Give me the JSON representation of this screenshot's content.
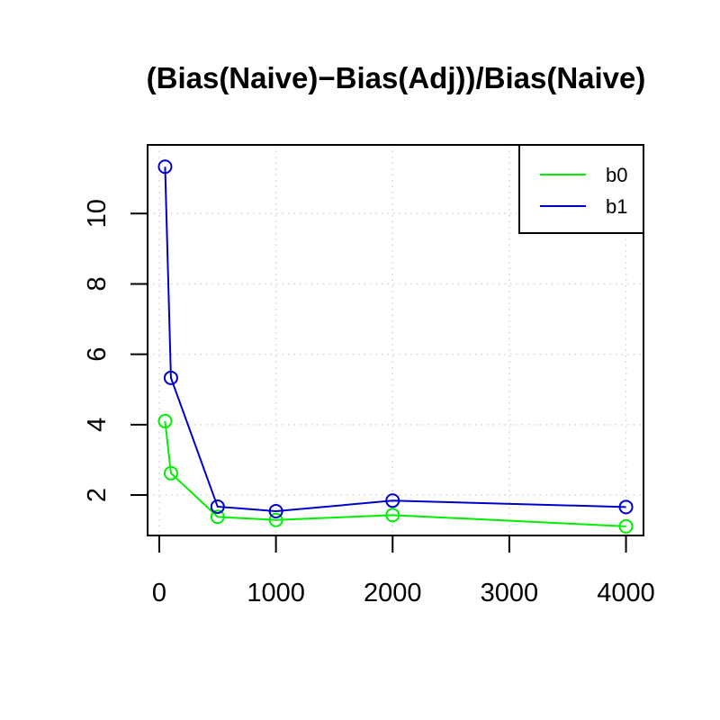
{
  "chart_data": {
    "type": "line",
    "title": "(Bias(Naive)−Bias(Adj))/Bias(Naive)",
    "xlabel": "",
    "ylabel": "",
    "xlim": [
      -100,
      4150
    ],
    "ylim": [
      0.85,
      11.95
    ],
    "x_ticks": [
      0,
      1000,
      2000,
      3000,
      4000
    ],
    "x_tick_labels": [
      "0",
      "1000",
      "2000",
      "3000",
      "4000"
    ],
    "y_ticks": [
      2,
      4,
      6,
      8,
      10
    ],
    "y_tick_labels": [
      "2",
      "4",
      "6",
      "8",
      "10"
    ],
    "grid": true,
    "legend_position": "top-right",
    "marker": "open-circle",
    "series": [
      {
        "name": "b0",
        "color": "#00ee00",
        "x": [
          50,
          100,
          500,
          1000,
          2000,
          4000
        ],
        "y": [
          4.1,
          2.62,
          1.38,
          1.29,
          1.43,
          1.11
        ]
      },
      {
        "name": "b1",
        "color": "#0000cc",
        "x": [
          50,
          100,
          500,
          1000,
          2000,
          4000
        ],
        "y": [
          11.33,
          5.33,
          1.67,
          1.54,
          1.84,
          1.66
        ]
      }
    ]
  }
}
